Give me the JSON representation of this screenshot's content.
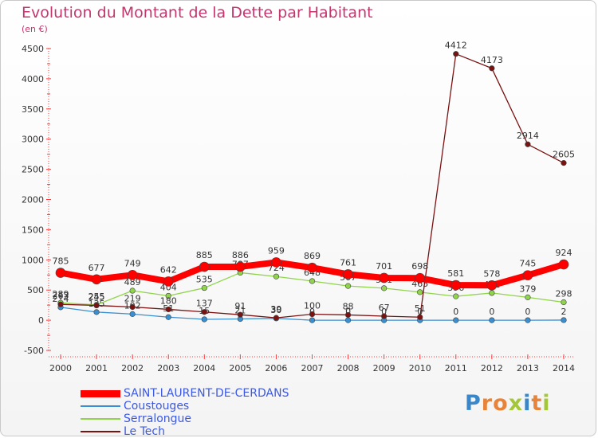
{
  "title": "Evolution du Montant de la Dette par Habitant",
  "subtitle": "(en €)",
  "logo": {
    "text": "Proxiti",
    "letters": [
      "P",
      "r",
      "o",
      "x",
      "i",
      "t",
      "i"
    ],
    "colors": [
      "#3a86c8",
      "#e8843a",
      "#e8843a",
      "#a4c639",
      "#3a86c8",
      "#e8843a",
      "#a4c639"
    ]
  },
  "chart_data": {
    "type": "line",
    "x": [
      2000,
      2001,
      2002,
      2003,
      2004,
      2005,
      2006,
      2007,
      2008,
      2009,
      2010,
      2011,
      2012,
      2013,
      2014
    ],
    "ylim": [
      -500,
      4500
    ],
    "yticks": [
      -500,
      0,
      500,
      1000,
      1500,
      2000,
      2500,
      3000,
      3500,
      4000,
      4500
    ],
    "grid": false,
    "legend": "bottom-left",
    "series": [
      {
        "name": "SAINT-LAURENT-DE-CERDANS",
        "color": "#ff0000",
        "thick": true,
        "values": [
          785,
          677,
          749,
          642,
          885,
          886,
          959,
          869,
          761,
          701,
          698,
          581,
          578,
          745,
          924
        ]
      },
      {
        "name": "Coustouges",
        "color": "#3a8fd0",
        "thick": false,
        "values": [
          214,
          135,
          102,
          51,
          15,
          21,
          30,
          0,
          0,
          0,
          0,
          0,
          0,
          0,
          2
        ]
      },
      {
        "name": "Serralongue",
        "color": "#8fd44a",
        "thick": false,
        "values": [
          289,
          255,
          489,
          404,
          535,
          787,
          724,
          648,
          567,
          531,
          465,
          396,
          451,
          379,
          298
        ]
      },
      {
        "name": "Le Tech",
        "color": "#7a1212",
        "thick": false,
        "values": [
          263,
          245,
          219,
          180,
          137,
          91,
          39,
          100,
          88,
          67,
          51,
          4412,
          4173,
          2914,
          2605
        ]
      }
    ]
  }
}
